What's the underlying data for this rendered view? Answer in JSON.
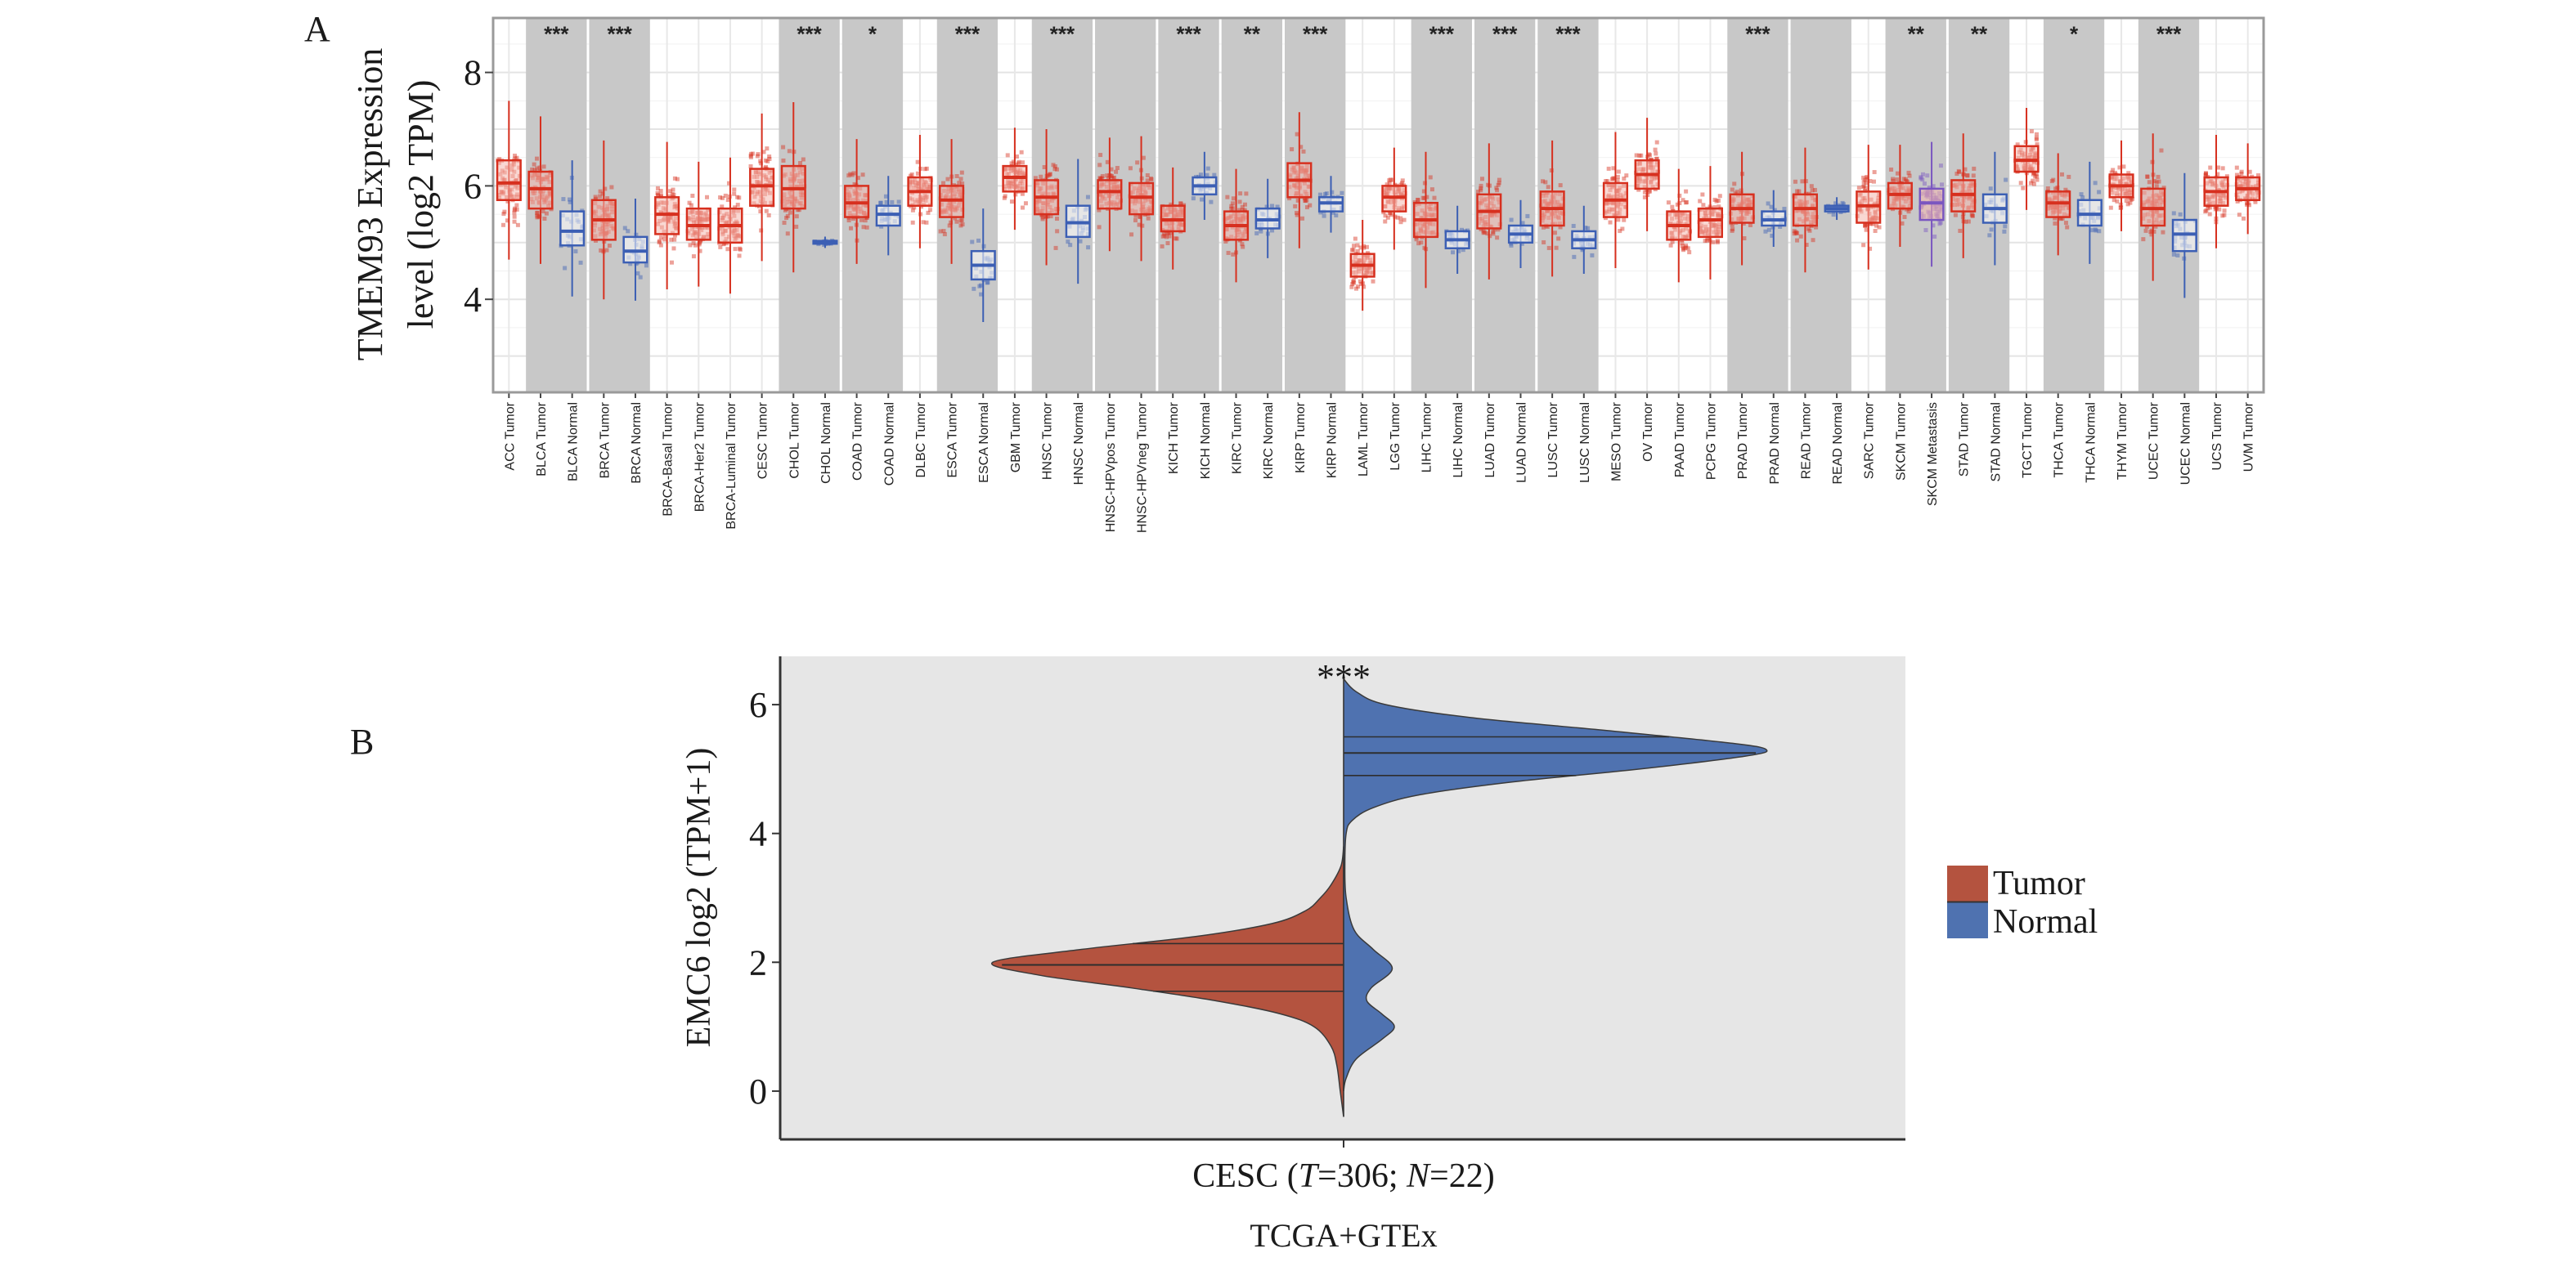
{
  "chart_data": [
    {
      "panel_label": "A",
      "type": "box",
      "ylabel_lines": [
        "TMEM93 Expression",
        "level (log2 TPM)"
      ],
      "yticks": [
        4,
        6,
        8
      ],
      "ylim": [
        2.36,
        8.96
      ],
      "grid": true,
      "colors": {
        "Tumor": "#d7301f",
        "Normal": "#3c5fb4",
        "Metastasis": "#7a56c0",
        "band": "#c8c8c8"
      },
      "categories": [
        {
          "label": "ACC Tumor",
          "group": "ACC",
          "kind": "Tumor",
          "median": 6.05,
          "q1": 5.75,
          "q3": 6.45
        },
        {
          "label": "BLCA Tumor",
          "group": "BLCA",
          "kind": "Tumor",
          "median": 5.95,
          "q1": 5.6,
          "q3": 6.25
        },
        {
          "label": "BLCA Normal",
          "group": "BLCA",
          "kind": "Normal",
          "median": 5.2,
          "q1": 4.95,
          "q3": 5.55
        },
        {
          "label": "BRCA Tumor",
          "group": "BRCA",
          "kind": "Tumor",
          "median": 5.4,
          "q1": 5.05,
          "q3": 5.75
        },
        {
          "label": "BRCA Normal",
          "group": "BRCA",
          "kind": "Normal",
          "median": 4.85,
          "q1": 4.65,
          "q3": 5.1
        },
        {
          "label": "BRCA-Basal Tumor",
          "group": "BRCA-Basal",
          "kind": "Tumor",
          "median": 5.5,
          "q1": 5.15,
          "q3": 5.8
        },
        {
          "label": "BRCA-Her2 Tumor",
          "group": "BRCA-Her2",
          "kind": "Tumor",
          "median": 5.3,
          "q1": 5.05,
          "q3": 5.6
        },
        {
          "label": "BRCA-Luminal Tumor",
          "group": "BRCA-Luminal",
          "kind": "Tumor",
          "median": 5.3,
          "q1": 5.0,
          "q3": 5.6
        },
        {
          "label": "CESC Tumor",
          "group": "CESC",
          "kind": "Tumor",
          "median": 6.0,
          "q1": 5.65,
          "q3": 6.3
        },
        {
          "label": "CHOL Tumor",
          "group": "CHOL",
          "kind": "Tumor",
          "median": 5.95,
          "q1": 5.6,
          "q3": 6.35
        },
        {
          "label": "CHOL Normal",
          "group": "CHOL",
          "kind": "Normal",
          "median": 5.0,
          "q1": 4.98,
          "q3": 5.03
        },
        {
          "label": "COAD Tumor",
          "group": "COAD",
          "kind": "Tumor",
          "median": 5.7,
          "q1": 5.45,
          "q3": 6.0
        },
        {
          "label": "COAD Normal",
          "group": "COAD",
          "kind": "Normal",
          "median": 5.5,
          "q1": 5.3,
          "q3": 5.65
        },
        {
          "label": "DLBC Tumor",
          "group": "DLBC",
          "kind": "Tumor",
          "median": 5.9,
          "q1": 5.65,
          "q3": 6.15
        },
        {
          "label": "ESCA Tumor",
          "group": "ESCA",
          "kind": "Tumor",
          "median": 5.75,
          "q1": 5.45,
          "q3": 6.0
        },
        {
          "label": "ESCA Normal",
          "group": "ESCA",
          "kind": "Normal",
          "median": 4.6,
          "q1": 4.35,
          "q3": 4.85
        },
        {
          "label": "GBM Tumor",
          "group": "GBM",
          "kind": "Tumor",
          "median": 6.15,
          "q1": 5.9,
          "q3": 6.35
        },
        {
          "label": "HNSC Tumor",
          "group": "HNSC",
          "kind": "Tumor",
          "median": 5.8,
          "q1": 5.5,
          "q3": 6.1
        },
        {
          "label": "HNSC Normal",
          "group": "HNSC",
          "kind": "Normal",
          "median": 5.35,
          "q1": 5.1,
          "q3": 5.65
        },
        {
          "label": "HNSC-HPVpos Tumor",
          "group": "HNSC-HPV",
          "kind": "Tumor",
          "median": 5.9,
          "q1": 5.6,
          "q3": 6.1
        },
        {
          "label": "HNSC-HPVneg Tumor",
          "group": "HNSC-HPV",
          "kind": "Tumor",
          "median": 5.8,
          "q1": 5.5,
          "q3": 6.05
        },
        {
          "label": "KICH Tumor",
          "group": "KICH",
          "kind": "Tumor",
          "median": 5.4,
          "q1": 5.2,
          "q3": 5.65
        },
        {
          "label": "KICH Normal",
          "group": "KICH",
          "kind": "Normal",
          "median": 6.0,
          "q1": 5.85,
          "q3": 6.15
        },
        {
          "label": "KIRC Tumor",
          "group": "KIRC",
          "kind": "Tumor",
          "median": 5.3,
          "q1": 5.05,
          "q3": 5.55
        },
        {
          "label": "KIRC Normal",
          "group": "KIRC",
          "kind": "Normal",
          "median": 5.4,
          "q1": 5.25,
          "q3": 5.6
        },
        {
          "label": "KIRP Tumor",
          "group": "KIRP",
          "kind": "Tumor",
          "median": 6.1,
          "q1": 5.8,
          "q3": 6.4
        },
        {
          "label": "KIRP Normal",
          "group": "KIRP",
          "kind": "Normal",
          "median": 5.7,
          "q1": 5.55,
          "q3": 5.8
        },
        {
          "label": "LAML Tumor",
          "group": "LAML",
          "kind": "Tumor",
          "median": 4.6,
          "q1": 4.4,
          "q3": 4.8
        },
        {
          "label": "LGG Tumor",
          "group": "LGG",
          "kind": "Tumor",
          "median": 5.8,
          "q1": 5.55,
          "q3": 6.0
        },
        {
          "label": "LIHC Tumor",
          "group": "LIHC",
          "kind": "Tumor",
          "median": 5.4,
          "q1": 5.1,
          "q3": 5.7
        },
        {
          "label": "LIHC Normal",
          "group": "LIHC",
          "kind": "Normal",
          "median": 5.05,
          "q1": 4.9,
          "q3": 5.2
        },
        {
          "label": "LUAD Tumor",
          "group": "LUAD",
          "kind": "Tumor",
          "median": 5.55,
          "q1": 5.25,
          "q3": 5.85
        },
        {
          "label": "LUAD Normal",
          "group": "LUAD",
          "kind": "Normal",
          "median": 5.15,
          "q1": 5.0,
          "q3": 5.3
        },
        {
          "label": "LUSC Tumor",
          "group": "LUSC",
          "kind": "Tumor",
          "median": 5.6,
          "q1": 5.3,
          "q3": 5.9
        },
        {
          "label": "LUSC Normal",
          "group": "LUSC",
          "kind": "Normal",
          "median": 5.05,
          "q1": 4.9,
          "q3": 5.2
        },
        {
          "label": "MESO Tumor",
          "group": "MESO",
          "kind": "Tumor",
          "median": 5.75,
          "q1": 5.45,
          "q3": 6.05
        },
        {
          "label": "OV Tumor",
          "group": "OV",
          "kind": "Tumor",
          "median": 6.2,
          "q1": 5.95,
          "q3": 6.45
        },
        {
          "label": "PAAD Tumor",
          "group": "PAAD",
          "kind": "Tumor",
          "median": 5.3,
          "q1": 5.05,
          "q3": 5.55
        },
        {
          "label": "PCPG Tumor",
          "group": "PCPG",
          "kind": "Tumor",
          "median": 5.4,
          "q1": 5.1,
          "q3": 5.6
        },
        {
          "label": "PRAD Tumor",
          "group": "PRAD",
          "kind": "Tumor",
          "median": 5.6,
          "q1": 5.35,
          "q3": 5.85
        },
        {
          "label": "PRAD Normal",
          "group": "PRAD",
          "kind": "Normal",
          "median": 5.4,
          "q1": 5.3,
          "q3": 5.55
        },
        {
          "label": "READ Tumor",
          "group": "READ",
          "kind": "Tumor",
          "median": 5.6,
          "q1": 5.3,
          "q3": 5.85
        },
        {
          "label": "READ Normal",
          "group": "READ",
          "kind": "Normal",
          "median": 5.6,
          "q1": 5.55,
          "q3": 5.65
        },
        {
          "label": "SARC Tumor",
          "group": "SARC",
          "kind": "Tumor",
          "median": 5.65,
          "q1": 5.35,
          "q3": 5.9
        },
        {
          "label": "SKCM Tumor",
          "group": "SKCM",
          "kind": "Tumor",
          "median": 5.85,
          "q1": 5.6,
          "q3": 6.05
        },
        {
          "label": "SKCM Metastasis",
          "group": "SKCM",
          "kind": "Metastasis",
          "median": 5.7,
          "q1": 5.4,
          "q3": 5.95
        },
        {
          "label": "STAD Tumor",
          "group": "STAD",
          "kind": "Tumor",
          "median": 5.85,
          "q1": 5.55,
          "q3": 6.1
        },
        {
          "label": "STAD Normal",
          "group": "STAD",
          "kind": "Normal",
          "median": 5.6,
          "q1": 5.35,
          "q3": 5.85
        },
        {
          "label": "TGCT Tumor",
          "group": "TGCT",
          "kind": "Tumor",
          "median": 6.45,
          "q1": 6.25,
          "q3": 6.7
        },
        {
          "label": "THCA Tumor",
          "group": "THCA",
          "kind": "Tumor",
          "median": 5.7,
          "q1": 5.45,
          "q3": 5.9
        },
        {
          "label": "THCA Normal",
          "group": "THCA",
          "kind": "Normal",
          "median": 5.5,
          "q1": 5.3,
          "q3": 5.75
        },
        {
          "label": "THYM Tumor",
          "group": "THYM",
          "kind": "Tumor",
          "median": 6.0,
          "q1": 5.8,
          "q3": 6.2
        },
        {
          "label": "UCEC Tumor",
          "group": "UCEC",
          "kind": "Tumor",
          "median": 5.6,
          "q1": 5.3,
          "q3": 5.95
        },
        {
          "label": "UCEC Normal",
          "group": "UCEC",
          "kind": "Normal",
          "median": 5.15,
          "q1": 4.85,
          "q3": 5.4
        },
        {
          "label": "UCS Tumor",
          "group": "UCS",
          "kind": "Tumor",
          "median": 5.9,
          "q1": 5.65,
          "q3": 6.15
        },
        {
          "label": "UVM Tumor",
          "group": "UVM",
          "kind": "Tumor",
          "median": 5.95,
          "q1": 5.75,
          "q3": 6.15
        }
      ],
      "shaded_groups": [
        "BLCA",
        "BRCA",
        "CHOL",
        "COAD",
        "ESCA",
        "HNSC",
        "HNSC-HPV",
        "KICH",
        "KIRC",
        "KIRP",
        "LIHC",
        "LUAD",
        "LUSC",
        "PRAD",
        "READ",
        "SKCM",
        "STAD",
        "THCA",
        "UCEC"
      ],
      "significance": {
        "BLCA": "***",
        "BRCA": "***",
        "CHOL": "***",
        "COAD": "*",
        "ESCA": "***",
        "HNSC": "***",
        "KICH": "***",
        "KIRC": "**",
        "KIRP": "***",
        "LIHC": "***",
        "LUAD": "***",
        "LUSC": "***",
        "PRAD": "***",
        "SKCM": "**",
        "STAD": "**",
        "THCA": "*",
        "UCEC": "***"
      }
    },
    {
      "panel_label": "B",
      "type": "violin",
      "ylabel": "EMC6 log2 (TPM+1)",
      "yticks": [
        0,
        2,
        4,
        6
      ],
      "ylim": [
        -0.75,
        6.75
      ],
      "x_category": {
        "dataset": "CESC",
        "tumor_n": 306,
        "normal_n": 22
      },
      "xlabel": "TCGA+GTEx",
      "significance": "***",
      "legend": {
        "position": "right",
        "entries": [
          "Tumor",
          "Normal"
        ]
      },
      "colors": {
        "Tumor": "#b4533f",
        "Normal": "#4f72b0",
        "background": "#e6e6e6"
      },
      "series": [
        {
          "name": "Tumor",
          "side": "left",
          "quartiles": [
            1.55,
            1.96,
            2.29
          ],
          "density": [
            [
              3.8,
              0
            ],
            [
              3.5,
              0.006
            ],
            [
              3.2,
              0.03
            ],
            [
              3.0,
              0.055
            ],
            [
              2.8,
              0.09
            ],
            [
              2.6,
              0.17
            ],
            [
              2.4,
              0.35
            ],
            [
              2.2,
              0.62
            ],
            [
              2.0,
              0.83
            ],
            [
              1.8,
              0.72
            ],
            [
              1.6,
              0.5
            ],
            [
              1.4,
              0.3
            ],
            [
              1.2,
              0.15
            ],
            [
              1.0,
              0.07
            ],
            [
              0.7,
              0.03
            ],
            [
              0.4,
              0.016
            ],
            [
              0.0,
              0.008
            ],
            [
              -0.4,
              0
            ]
          ]
        },
        {
          "name": "Normal",
          "side": "right",
          "quartiles": [
            4.9,
            5.25,
            5.5
          ],
          "density": [
            [
              6.4,
              0
            ],
            [
              6.2,
              0.03
            ],
            [
              6.0,
              0.1
            ],
            [
              5.8,
              0.3
            ],
            [
              5.6,
              0.62
            ],
            [
              5.4,
              0.92
            ],
            [
              5.3,
              1.0
            ],
            [
              5.2,
              0.95
            ],
            [
              5.0,
              0.7
            ],
            [
              4.8,
              0.4
            ],
            [
              4.6,
              0.18
            ],
            [
              4.4,
              0.07
            ],
            [
              4.2,
              0.02
            ],
            [
              4.0,
              0.006
            ],
            [
              3.5,
              0.003
            ],
            [
              3.0,
              0.006
            ],
            [
              2.5,
              0.025
            ],
            [
              2.2,
              0.07
            ],
            [
              1.9,
              0.115
            ],
            [
              1.6,
              0.065
            ],
            [
              1.4,
              0.055
            ],
            [
              1.2,
              0.09
            ],
            [
              1.0,
              0.12
            ],
            [
              0.8,
              0.09
            ],
            [
              0.5,
              0.03
            ],
            [
              0.2,
              0.006
            ],
            [
              0.0,
              0
            ]
          ]
        }
      ]
    }
  ]
}
